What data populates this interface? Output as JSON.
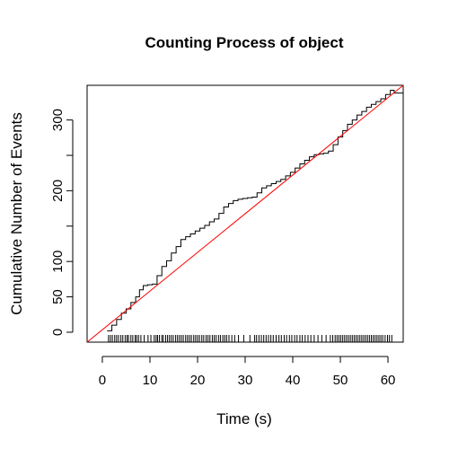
{
  "chart_data": {
    "type": "line",
    "title": "Counting Process of object",
    "xlabel": "Time (s)",
    "ylabel": "Cumulative Number of Events",
    "xlim": [
      -3.2,
      63.2
    ],
    "ylim": [
      -14,
      349
    ],
    "x_ticks": [
      0,
      10,
      20,
      30,
      40,
      50,
      60
    ],
    "y_ticks": [
      0,
      50,
      100,
      150,
      200,
      250,
      300
    ],
    "y_tick_labels": [
      "0",
      "50",
      "100",
      "",
      "200",
      "",
      "300"
    ],
    "grid": false,
    "series": [
      {
        "style": "step",
        "color": "#000000",
        "x": [
          1.0,
          2.0,
          3.0,
          4.0,
          5.0,
          6.0,
          7.0,
          7.8,
          8.6,
          9.5,
          10.5,
          11.5,
          12.5,
          13.5,
          14.5,
          15.5,
          16.5,
          17.5,
          18.5,
          19.5,
          20.5,
          21.5,
          22.5,
          23.5,
          24.5,
          25.5,
          26.5,
          27.5,
          28.5,
          29.5,
          30.5,
          31.5,
          32.5,
          33.5,
          34.5,
          35.5,
          36.5,
          37.5,
          38.5,
          39.5,
          40.5,
          41.5,
          42.5,
          43.5,
          44.5,
          45.5,
          46.5,
          47.5,
          48.5,
          49.5,
          50.5,
          51.5,
          52.5,
          53.5,
          54.5,
          55.5,
          56.5,
          57.5,
          58.5,
          59.5,
          60.5,
          61.3,
          63.2
        ],
        "y": [
          2,
          10,
          18,
          27,
          33,
          42,
          50,
          60,
          66,
          67,
          68,
          80,
          93,
          101,
          112,
          121,
          131,
          135,
          139,
          143,
          147,
          151,
          156,
          160,
          168,
          177,
          182,
          186,
          188,
          189,
          190,
          191,
          197,
          204,
          207,
          210,
          213,
          216,
          221,
          226,
          232,
          238,
          243,
          248,
          251,
          252,
          253,
          256,
          265,
          276,
          285,
          294,
          300,
          307,
          312,
          318,
          322,
          326,
          330,
          336,
          342,
          338,
          338
        ]
      },
      {
        "style": "line",
        "color": "#ff0000",
        "x": [
          -3.2,
          63.2
        ],
        "y": [
          -14,
          349
        ]
      }
    ],
    "rug_x": [
      1.3,
      1.7,
      2.1,
      2.6,
      3.0,
      3.4,
      3.9,
      4.3,
      4.8,
      5.2,
      5.5,
      6.0,
      6.4,
      6.9,
      7.2,
      7.6,
      8.1,
      8.8,
      9.6,
      10.2,
      10.9,
      11.3,
      11.6,
      12.0,
      12.5,
      12.8,
      13.3,
      13.7,
      14.1,
      14.5,
      14.9,
      15.4,
      15.8,
      16.2,
      16.6,
      17.0,
      17.5,
      17.9,
      18.3,
      18.7,
      19.2,
      19.6,
      20.0,
      20.4,
      20.9,
      21.3,
      21.8,
      22.2,
      22.6,
      23.1,
      23.5,
      23.9,
      24.4,
      24.8,
      25.3,
      25.7,
      26.1,
      26.6,
      27.2,
      27.8,
      28.6,
      29.7,
      31.0,
      32.0,
      32.4,
      32.9,
      33.4,
      33.9,
      34.4,
      34.9,
      35.4,
      35.9,
      36.5,
      37.1,
      37.6,
      38.2,
      38.7,
      39.3,
      39.8,
      40.4,
      40.9,
      41.5,
      42.0,
      42.6,
      43.2,
      43.8,
      44.5,
      45.3,
      46.1,
      47.0,
      47.9,
      48.4,
      48.9,
      49.3,
      49.7,
      50.1,
      50.5,
      50.9,
      51.3,
      51.7,
      52.1,
      52.5,
      52.9,
      53.3,
      53.7,
      54.1,
      54.5,
      54.9,
      55.3,
      55.7,
      56.1,
      56.5,
      56.9,
      57.3,
      57.7,
      58.1,
      58.5,
      58.9,
      59.4,
      59.9,
      60.3,
      60.8
    ]
  }
}
